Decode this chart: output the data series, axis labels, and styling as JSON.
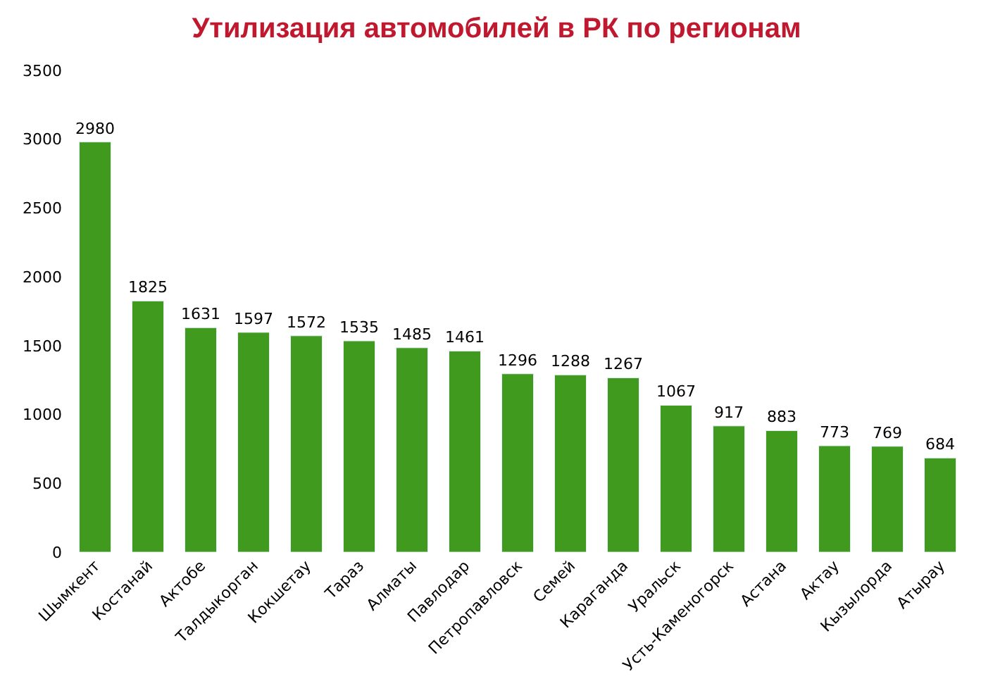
{
  "chart_data": {
    "type": "bar",
    "title": "Утилизация автомобилей в РК по регионам",
    "categories": [
      "Шымкент",
      "Костанай",
      "Актобе",
      "Талдыкорган",
      "Кокшетау",
      "Тараз",
      "Алматы",
      "Павлодар",
      "Петропавловск",
      "Семей",
      "Караганда",
      "Уральск",
      "Усть-Каменогорск",
      "Астана",
      "Актау",
      "Кызылорда",
      "Атырау"
    ],
    "values": [
      2980,
      1825,
      1631,
      1597,
      1572,
      1535,
      1485,
      1461,
      1296,
      1288,
      1267,
      1067,
      917,
      883,
      773,
      769,
      684
    ],
    "color": "#3f9a1e",
    "ylim": [
      0,
      3500
    ],
    "yticks": [
      0,
      500,
      1000,
      1500,
      2000,
      2500,
      3000,
      3500
    ],
    "data_labels": true,
    "legend": false
  }
}
